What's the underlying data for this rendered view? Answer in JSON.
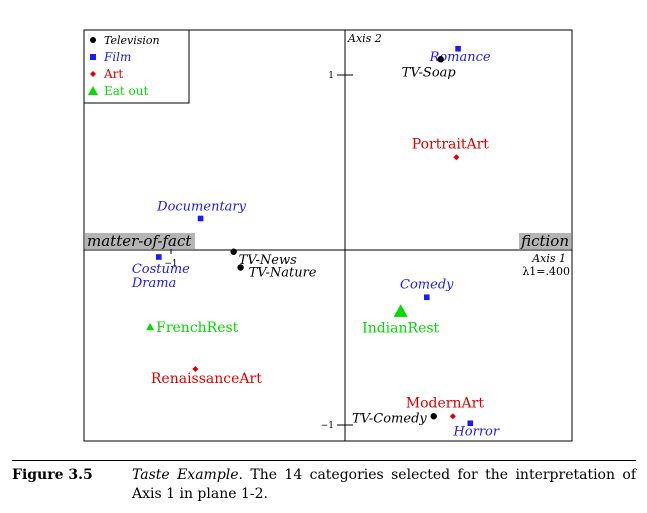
{
  "chart_data": {
    "type": "scatter",
    "axes": {
      "x_name": "Axis 1",
      "y_name": "Axis 2",
      "eigenvalue_label": "λ1=.400",
      "x_pole_negative": "matter-of-fact",
      "x_pole_positive": "fiction",
      "x_ticks": [
        {
          "value": -1,
          "label": "−1"
        }
      ],
      "y_ticks": [
        {
          "value": 1,
          "label": "1"
        },
        {
          "value": -1,
          "label": "−1"
        }
      ],
      "xlim": [
        -1.2,
        0.8
      ],
      "ylim": [
        -1.12,
        1.08
      ]
    },
    "legend": {
      "placement": "top-left",
      "entries": [
        {
          "label": "Television",
          "marker": "circle",
          "color": "#000000"
        },
        {
          "label": "Film",
          "marker": "square",
          "color": "#1a1aff"
        },
        {
          "label": "Art",
          "marker": "diamond",
          "color": "#e00000"
        },
        {
          "label": "Eat out",
          "marker": "triangle",
          "color": "#00dd00"
        }
      ]
    },
    "points": [
      {
        "name": "Romance",
        "group": "Film",
        "x": 0.65,
        "y": 1.15
      },
      {
        "name": "TV-Soap",
        "group": "Television",
        "x": 0.55,
        "y": 1.09
      },
      {
        "name": "PortraitArt",
        "group": "Art",
        "x": 0.64,
        "y": 0.53
      },
      {
        "name": "Documentary",
        "group": "Film",
        "x": -0.83,
        "y": 0.18
      },
      {
        "name": "Costume Drama",
        "group": "Film",
        "x": -1.07,
        "y": -0.04
      },
      {
        "name": "TV-News",
        "group": "Television",
        "x": -0.64,
        "y": -0.01
      },
      {
        "name": "TV-Nature",
        "group": "Television",
        "x": -0.6,
        "y": -0.1
      },
      {
        "name": "Comedy",
        "group": "Film",
        "x": 0.47,
        "y": -0.27
      },
      {
        "name": "IndianRest",
        "group": "Eat out",
        "x": 0.32,
        "y": -0.35
      },
      {
        "name": "FrenchRest",
        "group": "Eat out",
        "x": -1.12,
        "y": -0.44
      },
      {
        "name": "RenaissanceArt",
        "group": "Art",
        "x": -0.86,
        "y": -0.68
      },
      {
        "name": "ModernArt",
        "group": "Art",
        "x": 0.62,
        "y": -0.95
      },
      {
        "name": "TV-Comedy",
        "group": "Television",
        "x": 0.51,
        "y": -0.95
      },
      {
        "name": "Horror",
        "group": "Film",
        "x": 0.72,
        "y": -0.99
      }
    ]
  },
  "caption": {
    "label": "Figure 3.5",
    "title": "Taste Example.",
    "text": "The 14 categories selected for the interpretation of Axis 1 in plane 1-2."
  }
}
